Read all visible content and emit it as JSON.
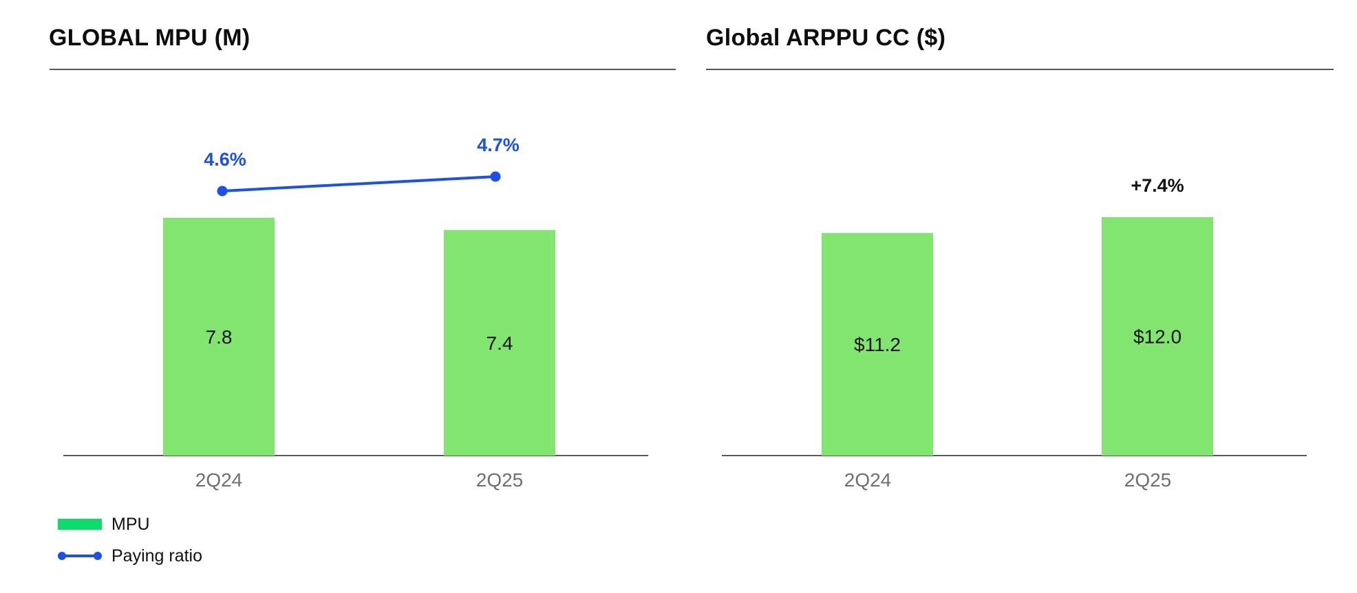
{
  "colors": {
    "bar": "#82e56f",
    "line": "#1a4ff0",
    "legend_bar": "#0ddc6b"
  },
  "panels": {
    "left": {
      "title": "GLOBAL MPU (M)"
    },
    "right": {
      "title": "Global ARPPU CC ($)"
    }
  },
  "legend": {
    "mpu": "MPU",
    "paying_ratio": "Paying ratio"
  },
  "chart_data": [
    {
      "type": "bar",
      "title": "GLOBAL MPU (M)",
      "categories": [
        "2Q24",
        "2Q25"
      ],
      "series": [
        {
          "name": "MPU",
          "values": [
            7.8,
            7.4
          ],
          "labels": [
            "7.8",
            "7.4"
          ]
        },
        {
          "name": "Paying ratio",
          "type": "line",
          "values": [
            4.6,
            4.7
          ],
          "labels": [
            "4.6%",
            "4.7%"
          ]
        }
      ],
      "legend": "bottom-left",
      "grid": false
    },
    {
      "type": "bar",
      "title": "Global ARPPU CC ($)",
      "categories": [
        "2Q24",
        "2Q25"
      ],
      "series": [
        {
          "values": [
            11.2,
            12.0
          ],
          "labels": [
            "$11.2",
            "$12.0"
          ]
        }
      ],
      "annotations": [
        {
          "category": "2Q25",
          "text": "+7.4%"
        }
      ],
      "grid": false
    }
  ]
}
